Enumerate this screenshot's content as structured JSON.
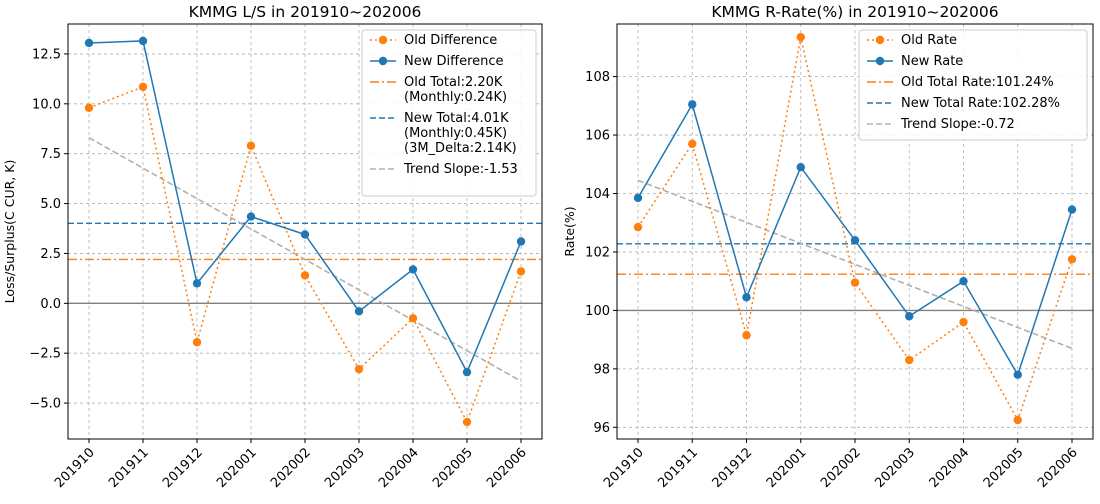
{
  "chart_data": [
    {
      "type": "line",
      "title": "KMMG L/S in 201910~202006",
      "xlabel": "",
      "ylabel": "Loss/Surplus(C CUR, K)",
      "categories": [
        "201910",
        "201911",
        "201912",
        "202001",
        "202002",
        "202003",
        "202004",
        "202005",
        "202006"
      ],
      "ylim": [
        -6.8,
        14.0
      ],
      "yticks": [
        -5.0,
        -2.5,
        0.0,
        2.5,
        5.0,
        7.5,
        10.0,
        12.5
      ],
      "ytick_labels": [
        "−5.0",
        "−2.5",
        "0.0",
        "2.5",
        "5.0",
        "7.5",
        "10.0",
        "12.5"
      ],
      "grid": true,
      "legend_position": "top-right",
      "series": [
        {
          "name": "Old Difference",
          "style": "dotted-markers",
          "color": "#ff7f0e",
          "values": [
            9.8,
            10.85,
            -1.95,
            7.9,
            1.4,
            -3.3,
            -0.75,
            -5.95,
            1.6
          ]
        },
        {
          "name": "New Difference",
          "style": "solid-markers",
          "color": "#1f77b4",
          "values": [
            13.05,
            13.15,
            1.0,
            4.35,
            3.45,
            -0.4,
            1.7,
            -3.45,
            3.1
          ]
        }
      ],
      "reference_lines": [
        {
          "name": "Old Total:2.20K\n(Monthly:0.24K)",
          "value": 2.2,
          "style": "dashdot",
          "color": "#ff7f0e"
        },
        {
          "name": "New Total:4.01K\n(Monthly:0.45K)\n(3M_Delta:2.14K)",
          "value": 4.01,
          "style": "dashed",
          "color": "#1f77b4"
        },
        {
          "name": "",
          "value": 0.0,
          "style": "solid",
          "color": "#808080"
        }
      ],
      "trend": {
        "name": "Trend Slope:-1.53",
        "slope": -1.53,
        "start": 8.3,
        "end": -3.9,
        "color": "#b0b0b0"
      }
    },
    {
      "type": "line",
      "title": "KMMG R-Rate(%) in 201910~202006",
      "xlabel": "",
      "ylabel": "Rate(%)",
      "categories": [
        "201910",
        "201911",
        "201912",
        "202001",
        "202002",
        "202003",
        "202004",
        "202005",
        "202006"
      ],
      "ylim": [
        95.6,
        109.8
      ],
      "yticks": [
        96,
        98,
        100,
        102,
        104,
        106,
        108
      ],
      "ytick_labels": [
        "96",
        "98",
        "100",
        "102",
        "104",
        "106",
        "108"
      ],
      "grid": true,
      "legend_position": "top-right",
      "series": [
        {
          "name": "Old Rate",
          "style": "dotted-markers",
          "color": "#ff7f0e",
          "values": [
            102.85,
            105.7,
            99.15,
            109.35,
            100.95,
            98.3,
            99.6,
            96.25,
            101.75
          ]
        },
        {
          "name": "New Rate",
          "style": "solid-markers",
          "color": "#1f77b4",
          "values": [
            103.85,
            107.05,
            100.45,
            104.9,
            102.4,
            99.8,
            101.0,
            97.8,
            103.45
          ]
        }
      ],
      "reference_lines": [
        {
          "name": "Old Total Rate:101.24%",
          "value": 101.24,
          "style": "dashdot",
          "color": "#ff7f0e"
        },
        {
          "name": "New Total Rate:102.28%",
          "value": 102.28,
          "style": "dashed",
          "color": "#1f77b4"
        },
        {
          "name": "",
          "value": 100.0,
          "style": "solid",
          "color": "#808080"
        }
      ],
      "trend": {
        "name": "Trend Slope:-0.72",
        "slope": -0.72,
        "start": 104.45,
        "end": 98.7,
        "color": "#b0b0b0"
      }
    }
  ]
}
